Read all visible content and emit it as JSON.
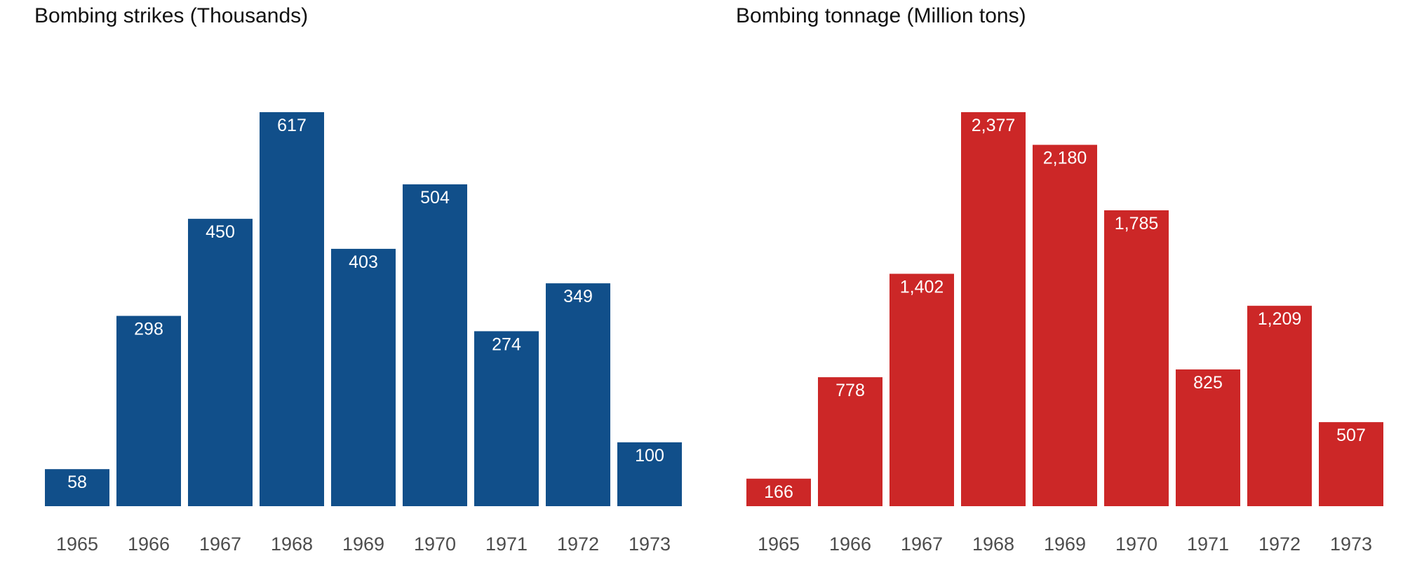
{
  "chart_data": [
    {
      "type": "bar",
      "title": "Bombing strikes (Thousands)",
      "categories": [
        "1965",
        "1966",
        "1967",
        "1968",
        "1969",
        "1970",
        "1971",
        "1972",
        "1973"
      ],
      "values": [
        58,
        298,
        450,
        617,
        403,
        504,
        274,
        349,
        100
      ],
      "value_labels": [
        "58",
        "298",
        "450",
        "617",
        "403",
        "504",
        "274",
        "349",
        "100"
      ],
      "ylim": [
        0,
        617
      ],
      "color": "#114f8a",
      "grid": false,
      "legend": "none"
    },
    {
      "type": "bar",
      "title": "Bombing tonnage (Million tons)",
      "categories": [
        "1965",
        "1966",
        "1967",
        "1968",
        "1969",
        "1970",
        "1971",
        "1972",
        "1973"
      ],
      "values": [
        166,
        778,
        1402,
        2377,
        2180,
        1785,
        825,
        1209,
        507
      ],
      "value_labels": [
        "166",
        "778",
        "1,402",
        "2,377",
        "2,180",
        "1,785",
        "825",
        "1,209",
        "507"
      ],
      "ylim": [
        0,
        2377
      ],
      "color": "#cc2727",
      "grid": false,
      "legend": "none"
    }
  ]
}
